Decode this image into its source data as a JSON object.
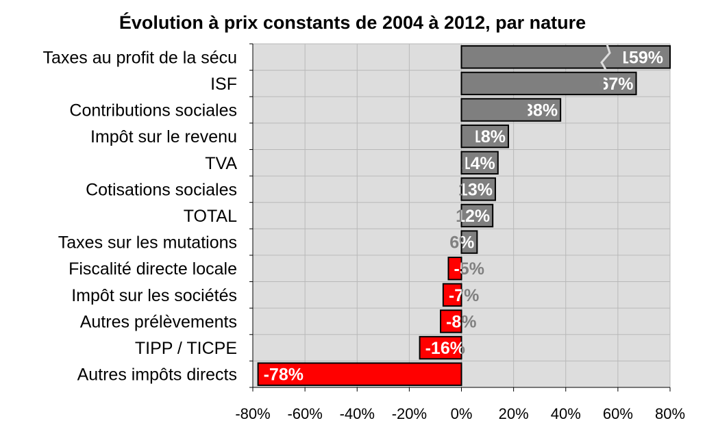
{
  "chart_data": {
    "type": "bar",
    "orientation": "horizontal",
    "title": "Évolution à prix constants de 2004 à 2012, par nature",
    "xlabel": "",
    "ylabel": "",
    "xlim": [
      -80,
      80
    ],
    "x_ticks": [
      -80,
      -60,
      -40,
      -20,
      0,
      20,
      40,
      60,
      80
    ],
    "x_tick_labels": [
      "-80%",
      "-60%",
      "-40%",
      "-20%",
      "0%",
      "20%",
      "40%",
      "60%",
      "80%"
    ],
    "grid": true,
    "legend": "none",
    "axis_break_on_first_bar": true,
    "categories": [
      "Taxes au profit de la sécu",
      "ISF",
      "Contributions sociales",
      "Impôt sur le revenu",
      "TVA",
      "Cotisations sociales",
      "TOTAL",
      "Taxes sur les mutations",
      "Fiscalité directe locale",
      "Impôt sur les sociétés",
      "Autres prélèvements",
      "TIPP / TICPE",
      "Autres impôts directs"
    ],
    "values": [
      159,
      67,
      38,
      18,
      14,
      13,
      12,
      6,
      -5,
      -7,
      -8,
      -16,
      -78
    ],
    "data_labels": [
      "159%",
      "67%",
      "38%",
      "18%",
      "14%",
      "13%",
      "12%",
      "6%",
      "-5%",
      "-7%",
      "-8%",
      "-16%",
      "-78%"
    ],
    "colors": {
      "positive": "#7f7f7f",
      "negative": "#ff0000",
      "plot_background": "#dddddd",
      "gridline": "#b8b8b8",
      "label_on_bar": "#ffffff",
      "label_overflow": "#808080"
    }
  }
}
